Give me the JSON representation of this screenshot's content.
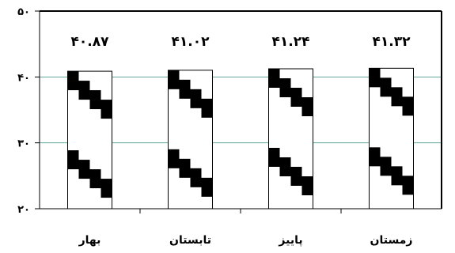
{
  "chart_data": {
    "type": "bar",
    "categories": [
      "بهار",
      "تابستان",
      "پاییز",
      "زمستان"
    ],
    "values": [
      40.87,
      41.02,
      41.24,
      41.32
    ],
    "data_labels": [
      "۴۰.۸۷",
      "۴۱.۰۲",
      "۴۱.۲۴",
      "۴۱.۳۲"
    ],
    "y_ticks": [
      20,
      30,
      40,
      50
    ],
    "y_tick_labels": [
      "۲۰",
      "۳۰",
      "۴۰",
      "۵۰"
    ],
    "ylim": [
      20,
      50
    ],
    "gridlines": [
      30,
      40
    ],
    "grid": true,
    "title": "",
    "xlabel": "",
    "ylabel": "",
    "colors": {
      "gridline": "#5fa89a",
      "bar_fill": "#ffffff",
      "bar_pattern": "#000000",
      "axis": "#000000"
    }
  }
}
